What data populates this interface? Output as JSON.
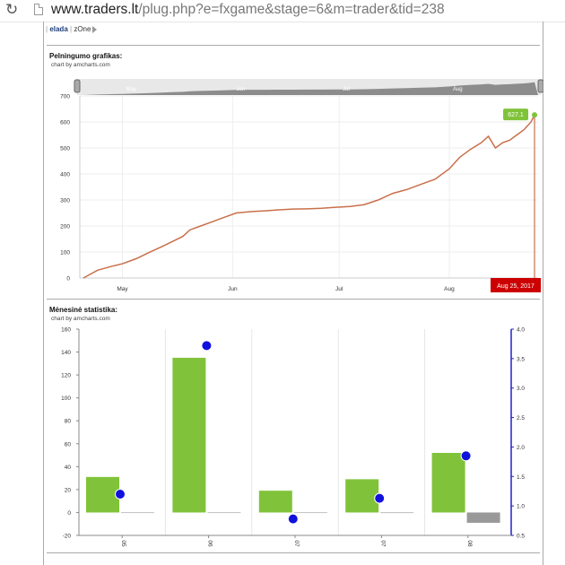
{
  "browser": {
    "url_host": "www.traders.lt",
    "url_path": "/plug.php?e=fxgame&stage=6&m=trader&tid=238"
  },
  "tabs": {
    "elada": "elada",
    "sep": "|",
    "zone": "zOne"
  },
  "profit_section": {
    "title": "Pelningumo grafikas:",
    "credit": "chart by amcharts.com"
  },
  "monthly_section": {
    "title": "Mėnesinė statistika:",
    "credit": "chart by amcharts.com"
  },
  "chart_data": [
    {
      "type": "line",
      "y_ticks": [
        "700",
        "600",
        "500",
        "400",
        "300",
        "200",
        "100",
        "0"
      ],
      "ylim": [
        0,
        700
      ],
      "x_ticks": [
        "May",
        "Jun",
        "Jul",
        "Aug"
      ],
      "scrollbar_ticks": [
        "May",
        "Jun",
        "Jul",
        "Aug"
      ],
      "line_color": "#c8704a",
      "last_value_label": "627.1",
      "date_label": "Aug 25, 2017",
      "series": [
        {
          "x": [
            "2017-04-20",
            "2017-04-24",
            "2017-04-28",
            "2017-05-01",
            "2017-05-05",
            "2017-05-08",
            "2017-05-12",
            "2017-05-15",
            "2017-05-18",
            "2017-05-20",
            "2017-05-23",
            "2017-05-26",
            "2017-05-30",
            "2017-06-02",
            "2017-06-06",
            "2017-06-10",
            "2017-06-14",
            "2017-06-18",
            "2017-06-22",
            "2017-06-26",
            "2017-06-30",
            "2017-07-04",
            "2017-07-08",
            "2017-07-12",
            "2017-07-16",
            "2017-07-20",
            "2017-07-24",
            "2017-07-28",
            "2017-08-01",
            "2017-08-04",
            "2017-08-07",
            "2017-08-10",
            "2017-08-12",
            "2017-08-14",
            "2017-08-16",
            "2017-08-18",
            "2017-08-20",
            "2017-08-22",
            "2017-08-24",
            "2017-08-25"
          ],
          "y": [
            0,
            30,
            45,
            55,
            75,
            95,
            120,
            140,
            160,
            185,
            200,
            215,
            235,
            250,
            255,
            258,
            262,
            265,
            266,
            268,
            272,
            275,
            282,
            300,
            325,
            340,
            360,
            380,
            420,
            465,
            495,
            520,
            545,
            500,
            520,
            530,
            550,
            570,
            600,
            627.1
          ]
        }
      ]
    },
    {
      "type": "bar",
      "categories": [
        "05",
        "06",
        "07",
        "07",
        "08"
      ],
      "ylim": [
        -20,
        160
      ],
      "y_ticks": [
        "160",
        "140",
        "120",
        "100",
        "80",
        "60",
        "40",
        "20",
        "0",
        "-20"
      ],
      "y2lim": [
        0.5,
        4.0
      ],
      "y2_ticks": [
        "4.0",
        "3.5",
        "3.0",
        "2.5",
        "2.0",
        "1.5",
        "1.0",
        "0.5"
      ],
      "colors": {
        "bar": "#80c33a",
        "secondary_bar": "#999999",
        "point": "#1111dd",
        "axis2": "#2222cc"
      },
      "series": [
        {
          "values": [
            31,
            135,
            19,
            29,
            52
          ]
        },
        {
          "values": [
            0,
            0,
            0,
            -0.5,
            -9
          ]
        },
        {
          "values": [
            1.2,
            3.72,
            0.78,
            1.13,
            1.85
          ]
        }
      ]
    }
  ]
}
